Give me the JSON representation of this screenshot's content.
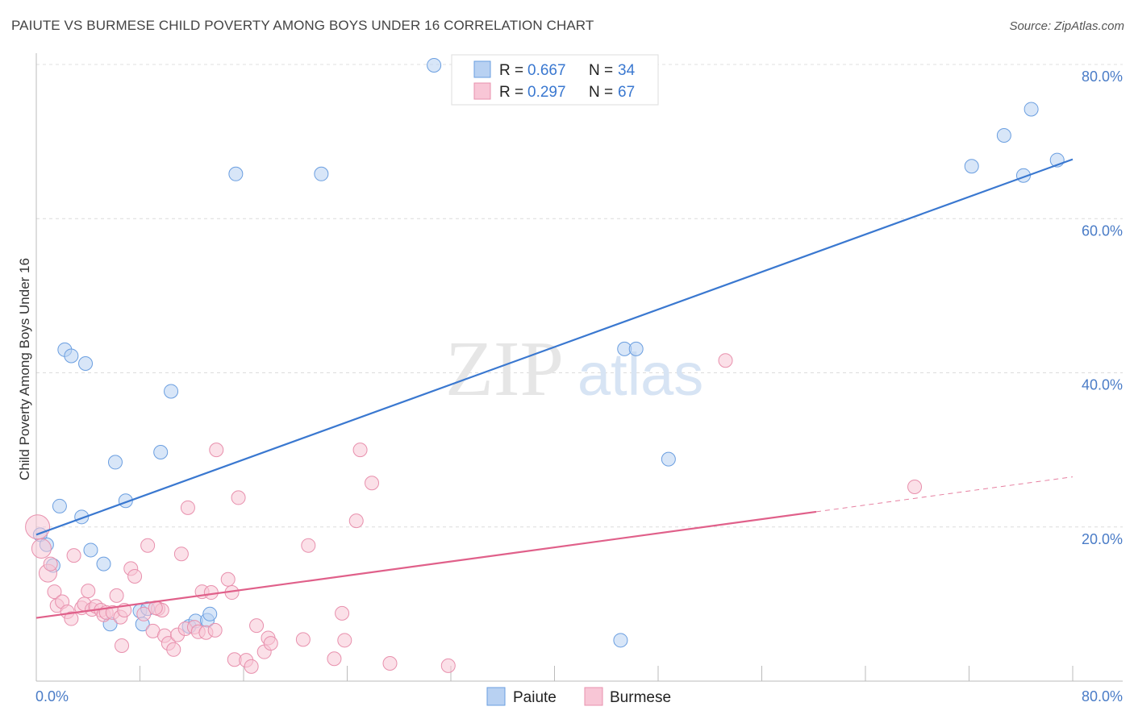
{
  "title": "PAIUTE VS BURMESE CHILD POVERTY AMONG BOYS UNDER 16 CORRELATION CHART",
  "source": "Source: ZipAtlas.com",
  "watermark": {
    "zip": "ZIP",
    "atlas": "atlas"
  },
  "legend": {
    "r_label": "R =",
    "n_label": "N =",
    "rows": [
      {
        "r": "0.667",
        "n": "34",
        "fill": "#b8d1f2",
        "stroke": "#6a9ee0"
      },
      {
        "r": "0.297",
        "n": "67",
        "fill": "#f8c6d6",
        "stroke": "#e890ad"
      }
    ]
  },
  "bottom_legend": [
    {
      "label": "Paiute",
      "fill": "#b8d1f2",
      "stroke": "#6a9ee0"
    },
    {
      "label": "Burmese",
      "fill": "#f8c6d6",
      "stroke": "#e890ad"
    }
  ],
  "chart_data": {
    "type": "scatter",
    "title": "PAIUTE VS BURMESE CHILD POVERTY AMONG BOYS UNDER 16 CORRELATION CHART",
    "xlabel": "",
    "ylabel": "Child Poverty Among Boys Under 16",
    "xlim": [
      0,
      80
    ],
    "ylim": [
      0,
      80
    ],
    "x_tick_labels": [
      "0.0%",
      "80.0%"
    ],
    "y_tick_labels": [
      "20.0%",
      "40.0%",
      "60.0%",
      "80.0%"
    ],
    "y_ticks": [
      20,
      40,
      60,
      80
    ],
    "grid": true,
    "series": [
      {
        "name": "Paiute",
        "color": "#3a78d0",
        "fill": "#b8d1f2",
        "stroke": "#6a9ee0",
        "r": 0.667,
        "n": 34,
        "trend": {
          "x0": 0,
          "y0": 19.0,
          "x1": 80,
          "y1": 67.7,
          "dash_from": null
        },
        "points": [
          [
            0.3,
            19.0
          ],
          [
            0.8,
            17.7
          ],
          [
            1.3,
            15.0
          ],
          [
            1.8,
            22.7
          ],
          [
            2.2,
            43.0
          ],
          [
            2.7,
            42.2
          ],
          [
            3.5,
            21.3
          ],
          [
            3.8,
            41.2
          ],
          [
            4.2,
            17.0
          ],
          [
            5.2,
            15.2
          ],
          [
            5.7,
            7.4
          ],
          [
            6.1,
            28.4
          ],
          [
            6.9,
            23.4
          ],
          [
            8.0,
            9.1
          ],
          [
            8.2,
            7.4
          ],
          [
            8.6,
            9.4
          ],
          [
            9.6,
            29.7
          ],
          [
            10.4,
            37.6
          ],
          [
            11.8,
            7.1
          ],
          [
            12.3,
            7.8
          ],
          [
            13.2,
            7.9
          ],
          [
            13.4,
            8.7
          ],
          [
            15.4,
            65.8
          ],
          [
            22.0,
            65.8
          ],
          [
            45.1,
            5.3
          ],
          [
            45.4,
            43.1
          ],
          [
            46.3,
            43.1
          ],
          [
            48.8,
            28.8
          ],
          [
            72.2,
            66.8
          ],
          [
            74.7,
            70.8
          ],
          [
            76.2,
            65.6
          ],
          [
            76.8,
            74.2
          ],
          [
            78.8,
            67.6
          ],
          [
            30.7,
            79.9
          ]
        ]
      },
      {
        "name": "Burmese",
        "color": "#e0608a",
        "fill": "#f8c6d6",
        "stroke": "#e890ad",
        "r": 0.297,
        "n": 67,
        "trend": {
          "x0": 0,
          "y0": 8.2,
          "x1": 80,
          "y1": 26.5,
          "dash_from": 60.2
        },
        "points": [
          [
            0.1,
            20.0
          ],
          [
            0.4,
            17.2
          ],
          [
            0.9,
            14.0
          ],
          [
            1.1,
            15.2
          ],
          [
            1.4,
            11.6
          ],
          [
            1.6,
            9.8
          ],
          [
            2.0,
            10.3
          ],
          [
            2.4,
            9.0
          ],
          [
            2.7,
            8.1
          ],
          [
            2.9,
            16.3
          ],
          [
            3.5,
            9.5
          ],
          [
            3.7,
            10.0
          ],
          [
            4.0,
            11.7
          ],
          [
            4.3,
            9.3
          ],
          [
            4.6,
            9.7
          ],
          [
            5.0,
            9.2
          ],
          [
            5.2,
            8.6
          ],
          [
            5.4,
            8.9
          ],
          [
            5.9,
            8.9
          ],
          [
            6.2,
            11.1
          ],
          [
            6.5,
            8.3
          ],
          [
            6.6,
            4.6
          ],
          [
            6.8,
            9.2
          ],
          [
            7.3,
            14.6
          ],
          [
            7.6,
            13.6
          ],
          [
            8.3,
            8.7
          ],
          [
            8.6,
            17.6
          ],
          [
            9.0,
            6.5
          ],
          [
            9.4,
            9.4
          ],
          [
            9.7,
            9.2
          ],
          [
            9.9,
            5.9
          ],
          [
            10.2,
            4.9
          ],
          [
            10.6,
            4.1
          ],
          [
            10.9,
            6.0
          ],
          [
            11.2,
            16.5
          ],
          [
            11.5,
            6.8
          ],
          [
            11.7,
            22.5
          ],
          [
            12.2,
            7.0
          ],
          [
            12.5,
            6.4
          ],
          [
            12.8,
            11.6
          ],
          [
            13.1,
            6.3
          ],
          [
            13.5,
            11.5
          ],
          [
            13.8,
            6.6
          ],
          [
            13.9,
            30.0
          ],
          [
            14.8,
            13.2
          ],
          [
            15.1,
            11.5
          ],
          [
            15.3,
            2.8
          ],
          [
            15.6,
            23.8
          ],
          [
            16.2,
            2.7
          ],
          [
            16.6,
            1.9
          ],
          [
            17.0,
            7.2
          ],
          [
            17.6,
            3.8
          ],
          [
            17.9,
            5.6
          ],
          [
            18.1,
            4.9
          ],
          [
            20.6,
            5.4
          ],
          [
            21.0,
            17.6
          ],
          [
            23.0,
            2.9
          ],
          [
            23.6,
            8.8
          ],
          [
            23.8,
            5.3
          ],
          [
            24.7,
            20.8
          ],
          [
            25.0,
            30.0
          ],
          [
            25.9,
            25.7
          ],
          [
            27.3,
            2.3
          ],
          [
            31.8,
            2.0
          ],
          [
            53.2,
            41.6
          ],
          [
            67.8,
            25.2
          ],
          [
            9.2,
            9.5
          ]
        ]
      }
    ]
  }
}
